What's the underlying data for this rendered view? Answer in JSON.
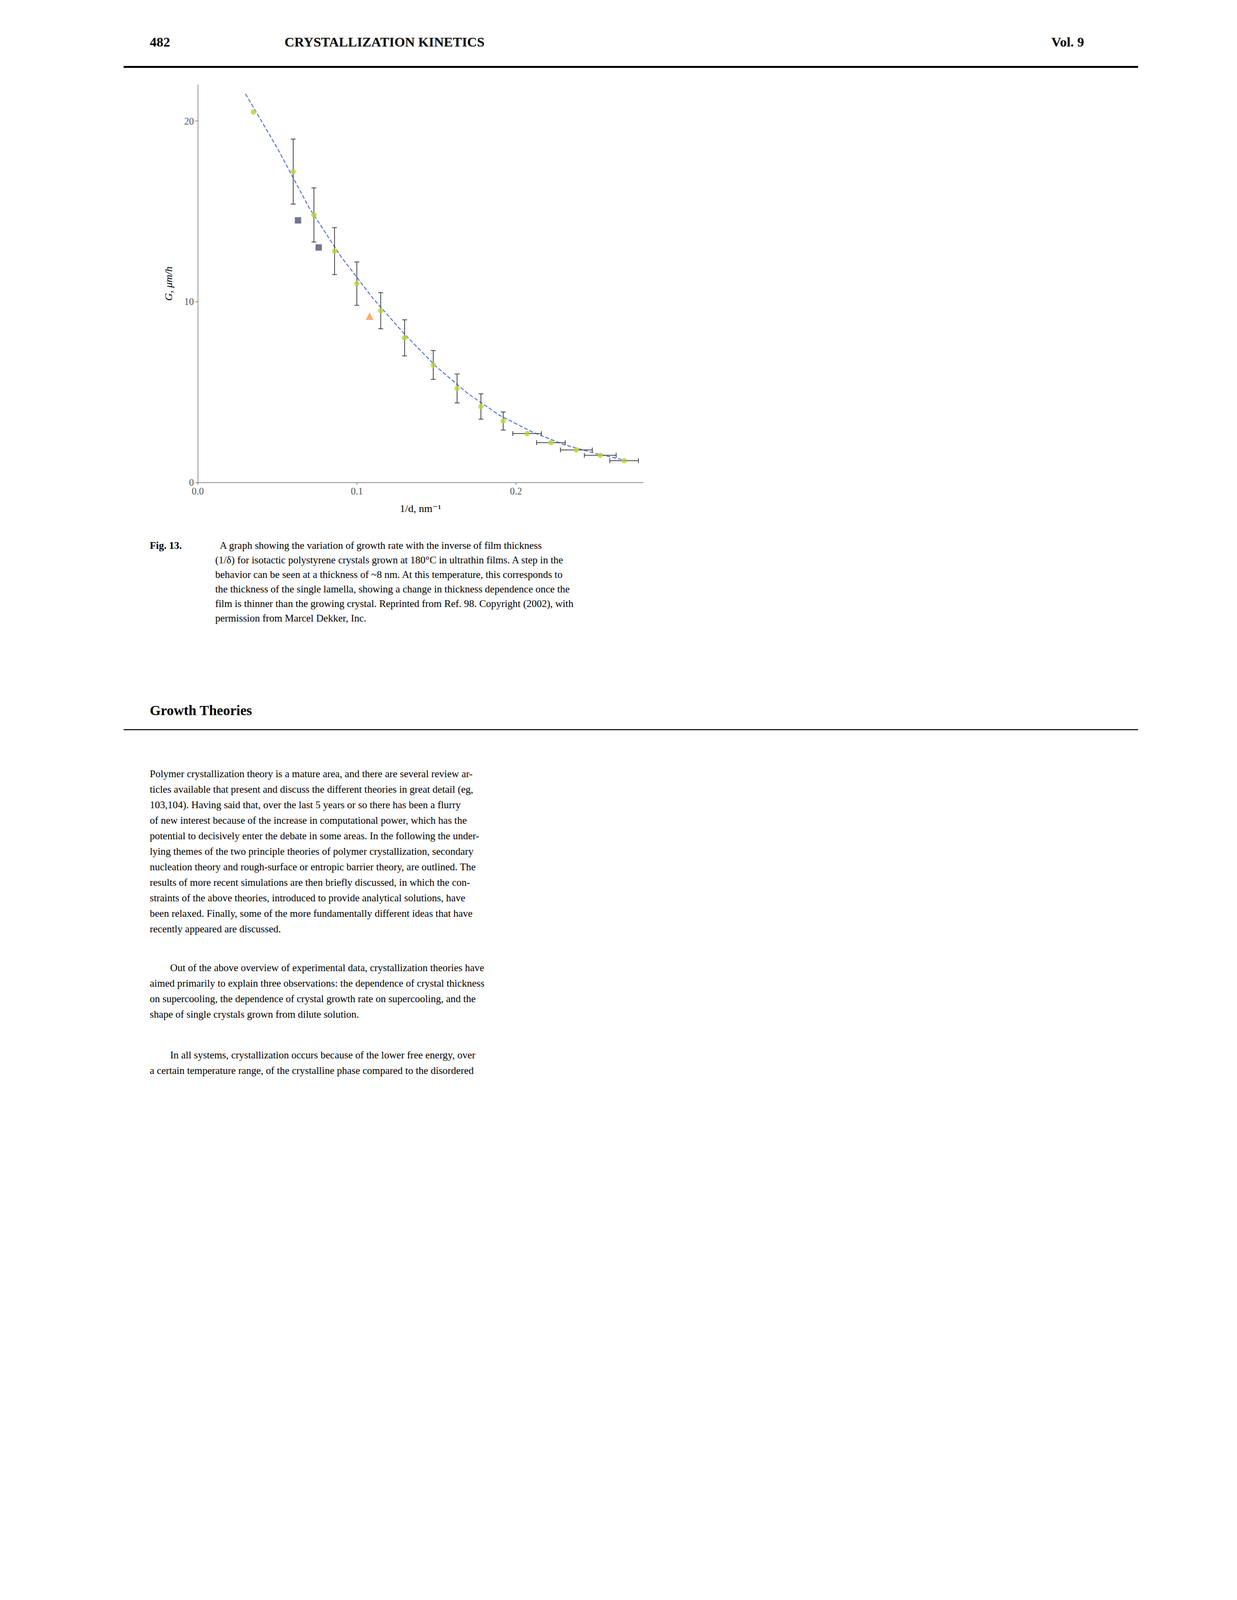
{
  "chart_data": {
    "type": "scatter",
    "header": [
      "482",
      "CRYSTALLIZATION KINETICS",
      "Vol. 9"
    ],
    "xlabel": "1/d, nm⁻¹",
    "ylabel": "G, μm/h",
    "xlim": [
      0,
      0.28
    ],
    "ylim": [
      0,
      22
    ],
    "xticks": [
      {
        "value": 0,
        "label": "0.0"
      },
      {
        "value": 0.1,
        "label": "0.1"
      },
      {
        "value": 0.2,
        "label": "0.2"
      }
    ],
    "yticks": [
      0,
      10,
      20
    ],
    "grid": false,
    "series": [
      {
        "type": "line",
        "line_style": "dashed",
        "marker": "none",
        "x": [
          0.03,
          0.05,
          0.07,
          0.09,
          0.11,
          0.13,
          0.15,
          0.17,
          0.19,
          0.21,
          0.23,
          0.25,
          0.27
        ],
        "values": [
          21.5,
          18.5,
          15.2,
          12.5,
          10.2,
          8.2,
          6.4,
          4.9,
          3.7,
          2.8,
          2.1,
          1.6,
          1.2
        ]
      },
      {
        "type": "scatter",
        "marker": "circle",
        "x": [
          0.035,
          0.06,
          0.073,
          0.086,
          0.1,
          0.115,
          0.13,
          0.148,
          0.163,
          0.178,
          0.192,
          0.207,
          0.222,
          0.238,
          0.253,
          0.268
        ],
        "values": [
          20.5,
          17.2,
          14.8,
          12.8,
          11.0,
          9.5,
          8.0,
          6.5,
          5.2,
          4.2,
          3.4,
          2.7,
          2.2,
          1.8,
          1.5,
          1.2
        ],
        "yerr": [
          null,
          1.8,
          1.5,
          1.3,
          1.2,
          1.0,
          1.0,
          0.8,
          0.8,
          0.7,
          0.5,
          null,
          null,
          null,
          null,
          null
        ],
        "xerr": [
          null,
          null,
          null,
          null,
          null,
          null,
          null,
          null,
          null,
          null,
          null,
          0.009,
          0.009,
          0.01,
          0.01,
          0.009
        ]
      },
      {
        "type": "scatter",
        "marker": "square",
        "x": [
          0.063,
          0.076
        ],
        "values": [
          14.5,
          13.0
        ]
      },
      {
        "type": "scatter",
        "marker": "triangle",
        "x": [
          0.108
        ],
        "values": [
          9.2
        ]
      }
    ],
    "caption": [
      "Fig. 13.",
      "  A graph showing the variation of growth rate with the inverse of film thickness\n(1/δ) for isotactic polystyrene crystals grown at 180°C in ultrathin films. A step in the\nbehavior can be seen at a thickness of ~8 nm. At this temperature, this corresponds to\nthe thickness of the single lamella, showing a change in thickness dependence once the\nfilm is thinner than the growing crystal. Reprinted from Ref. 98. Copyright (2002), with\npermission from Marcel Dekker, Inc."
    ],
    "section_header": "Growth Theories",
    "body": [
      "Polymer crystallization theory is a mature area, and there are several review ar-\nticles available that present and discuss the different theories in great detail (eg,\n103,104). Having said that, over the last 5 years or so there has been a flurry\nof new interest because of the increase in computational power, which has the\npotential to decisively enter the debate in some areas. In the following the under-\nlying themes of the two principle theories of polymer crystallization, secondary\nnucleation theory and rough-surface or entropic barrier theory, are outlined. The\nresults of more recent simulations are then briefly discussed, in which the con-\nstraints of the above theories, introduced to provide analytical solutions, have\nbeen relaxed. Finally, some of the more fundamentally different ideas that have\nrecently appeared are discussed.",
      "        Out of the above overview of experimental data, crystallization theories have\naimed primarily to explain three observations: the dependence of crystal thickness\non supercooling, the dependence of crystal growth rate on supercooling, and the\nshape of single crystals grown from dilute solution.",
      "        In all systems, crystallization occurs because of the lower free energy, over\na certain temperature range, of the crystalline phase compared to the disordered"
    ]
  }
}
